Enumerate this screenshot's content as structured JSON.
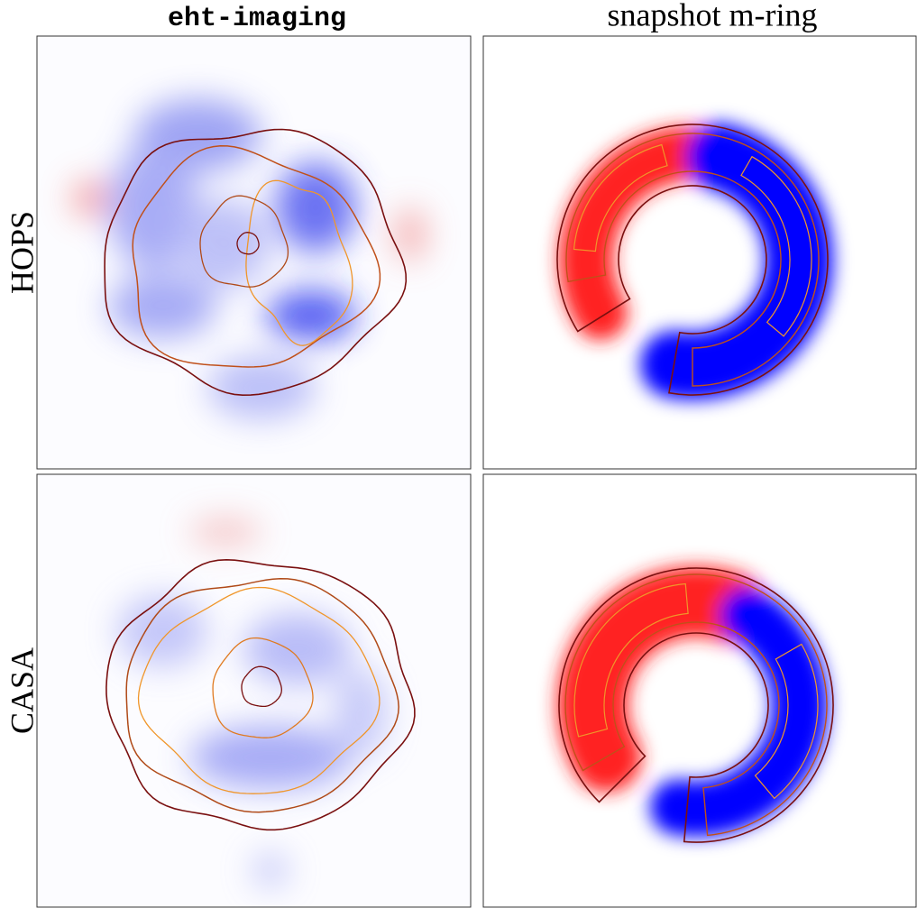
{
  "columns": [
    "eht-imaging",
    "snapshot m-ring"
  ],
  "rows": [
    "HOPS",
    "CASA"
  ]
}
